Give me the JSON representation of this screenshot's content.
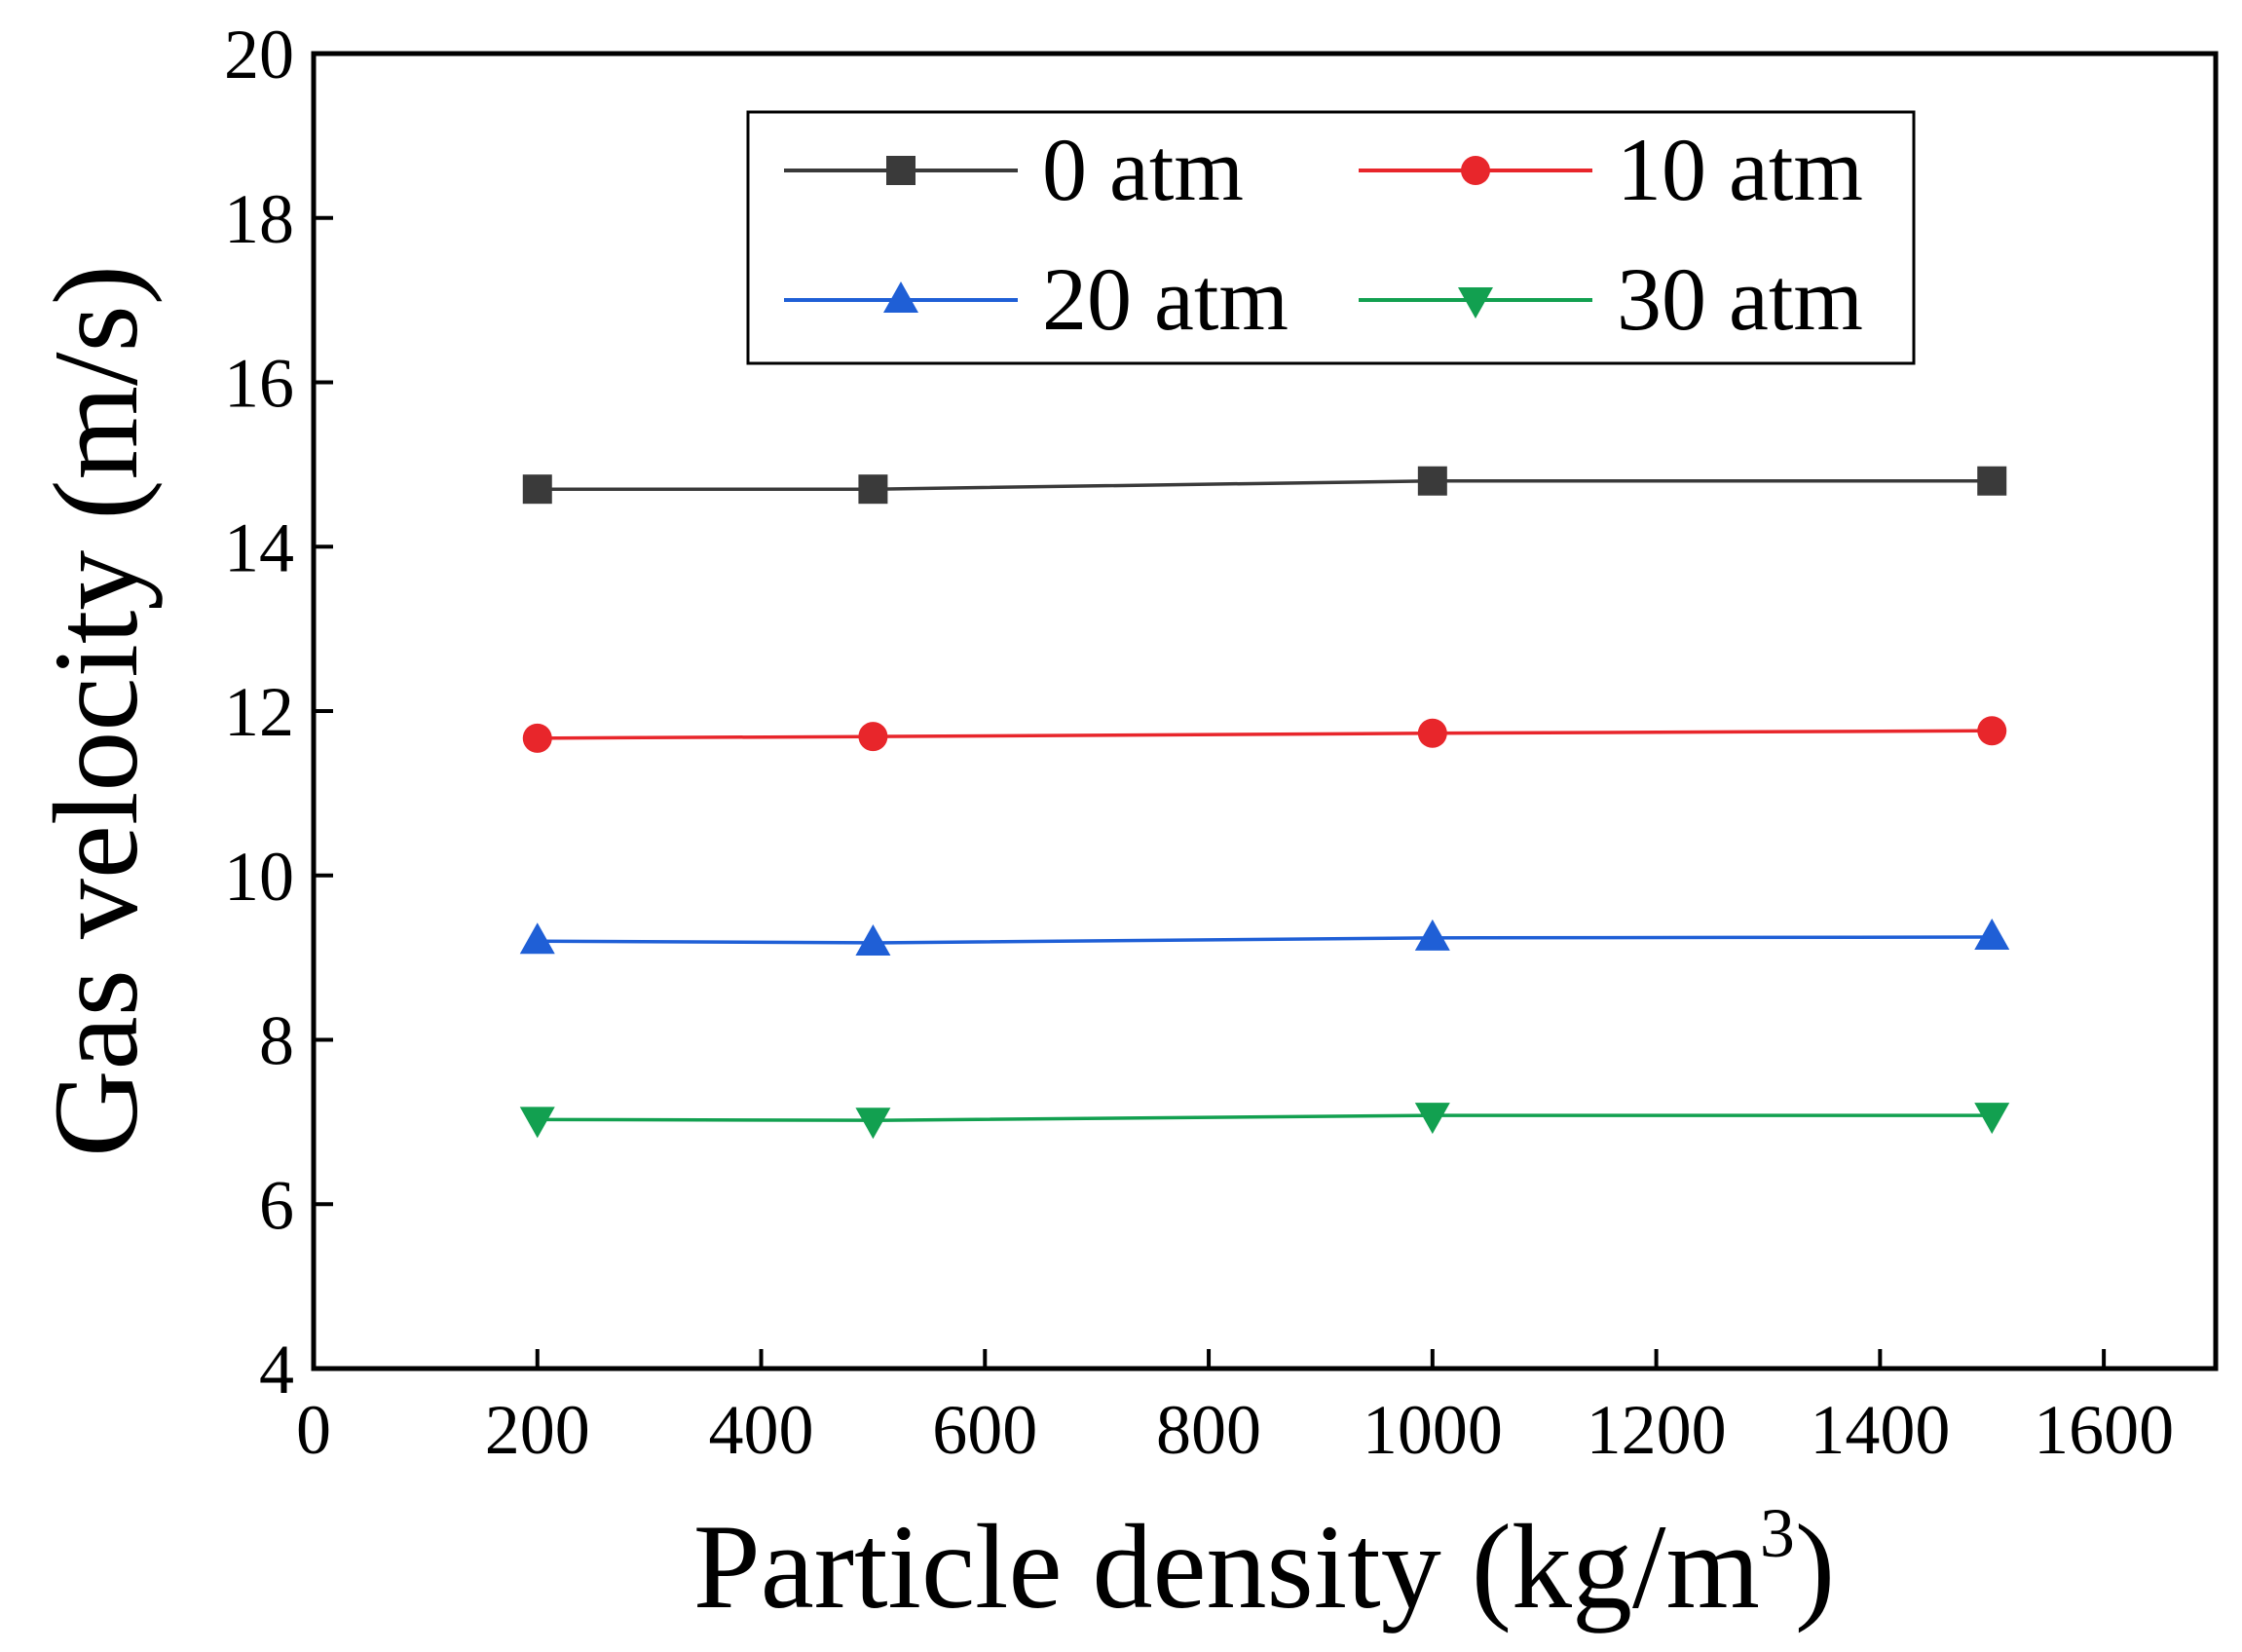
{
  "chart_data": {
    "type": "line",
    "title": "",
    "xlabel": "Particle density (kg/m",
    "xlabel_sup": "3",
    "xlabel_close": ")",
    "ylabel": "Gas velocity (m/s)",
    "xlim": [
      0,
      1700
    ],
    "ylim": [
      4,
      20
    ],
    "xticks": [
      0,
      200,
      400,
      600,
      800,
      1000,
      1200,
      1400,
      1600
    ],
    "yticks": [
      4,
      6,
      8,
      10,
      12,
      14,
      16,
      18,
      20
    ],
    "grid": false,
    "legend_position": "top-right",
    "x": [
      200,
      500,
      1000,
      1500
    ],
    "series": [
      {
        "name": "0 atm",
        "color": "#3a3a3a",
        "marker": "square",
        "values": [
          14.7,
          14.7,
          14.8,
          14.8
        ]
      },
      {
        "name": "10 atm",
        "color": "#e8262b",
        "marker": "circle",
        "values": [
          11.67,
          11.69,
          11.73,
          11.76
        ]
      },
      {
        "name": "20 atm",
        "color": "#1f5fd6",
        "marker": "triangle-up",
        "values": [
          9.2,
          9.18,
          9.24,
          9.25
        ]
      },
      {
        "name": "30 atm",
        "color": "#12a050",
        "marker": "triangle-down",
        "values": [
          7.03,
          7.02,
          7.08,
          7.08
        ]
      }
    ]
  }
}
